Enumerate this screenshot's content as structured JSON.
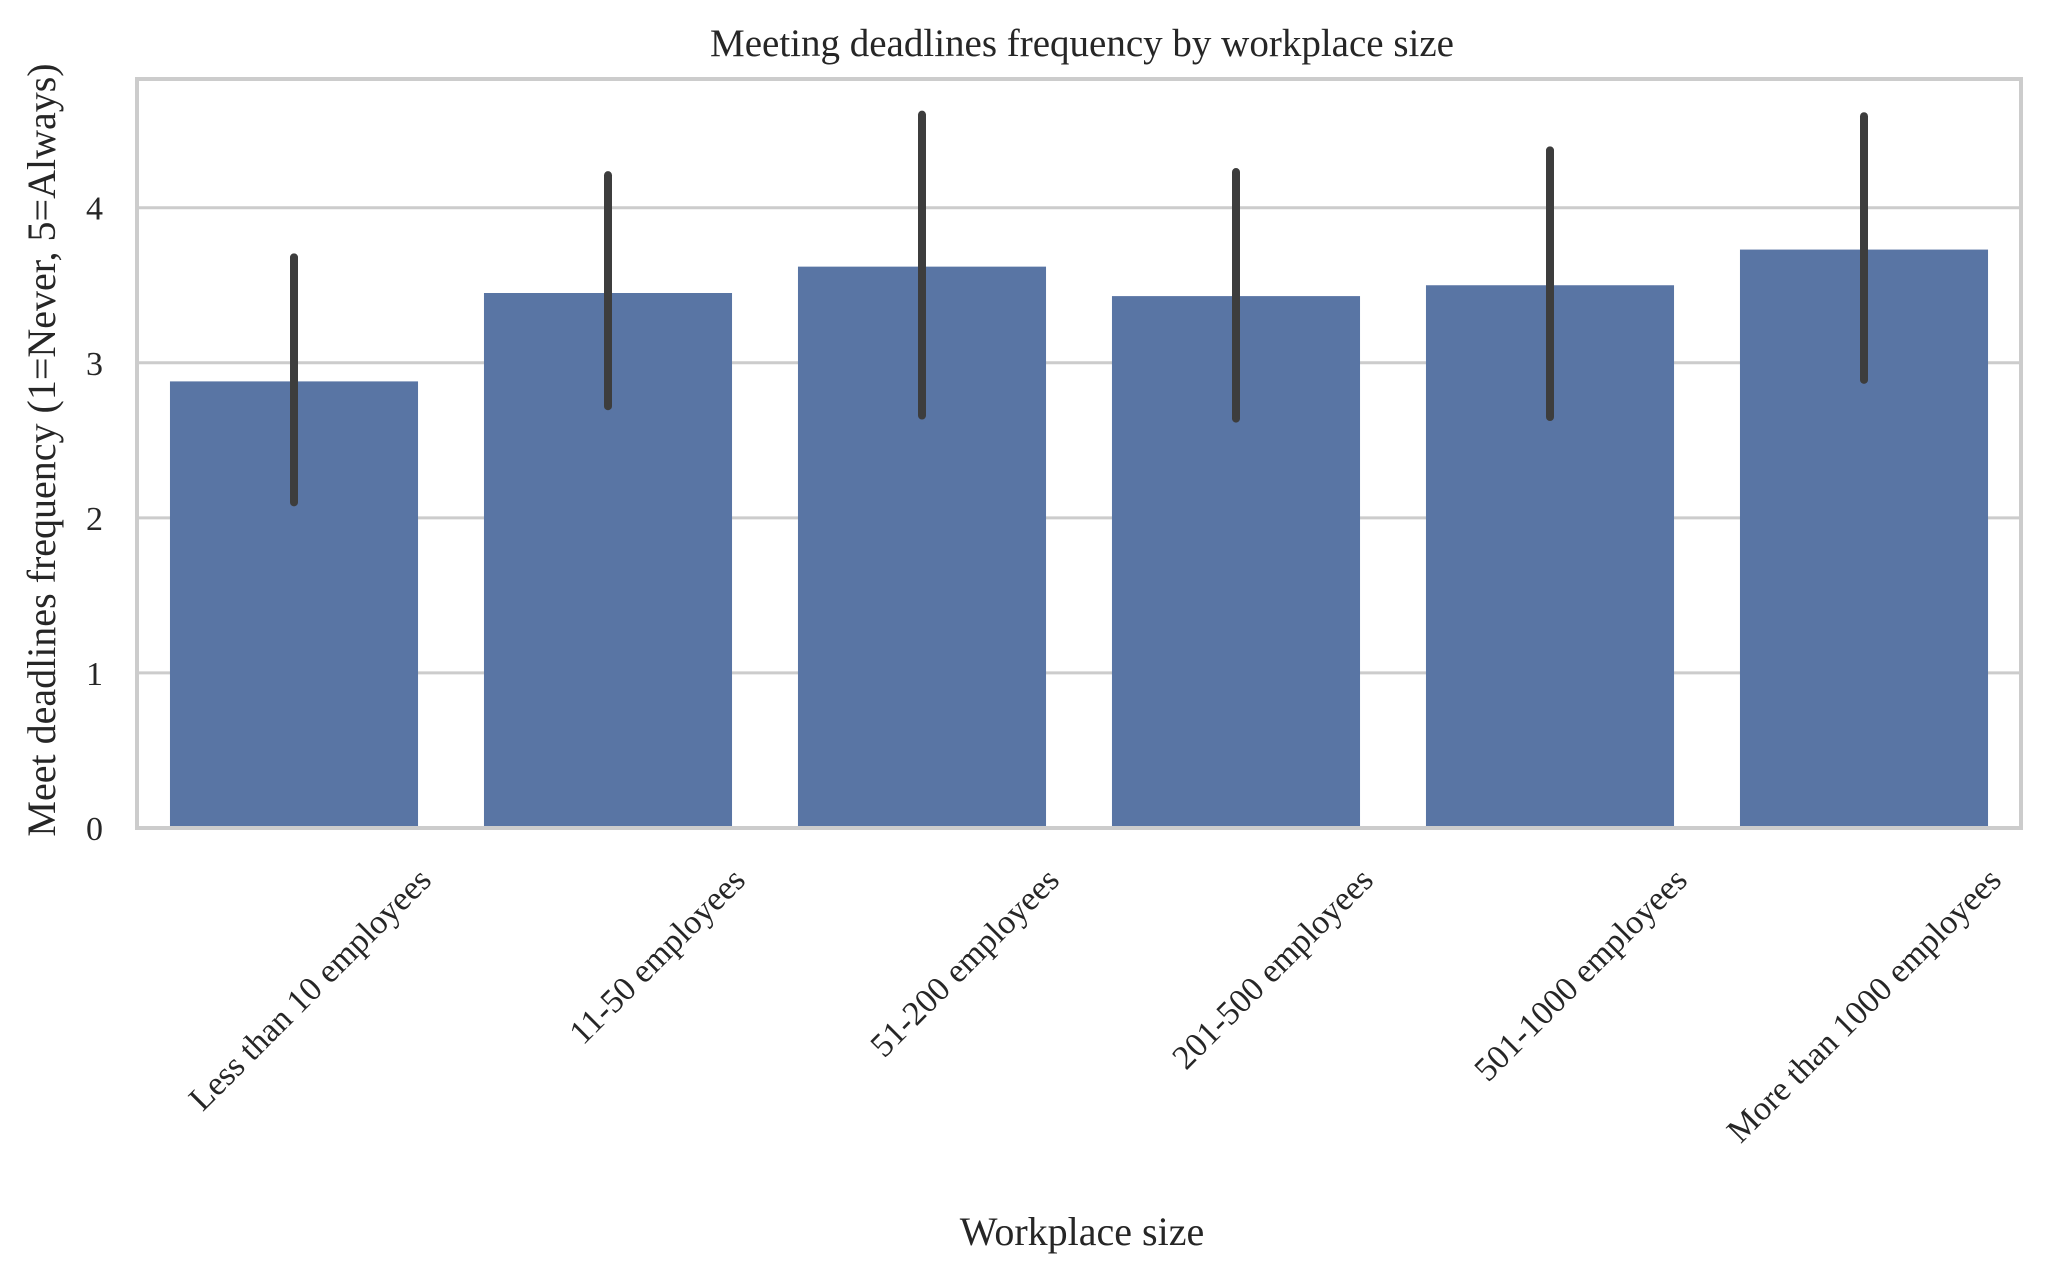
{
  "chart_data": {
    "type": "bar",
    "title": "Meeting deadlines frequency by workplace size",
    "xlabel": "Workplace size",
    "ylabel": "Meet deadlines frequency (1=Never, 5=Always)",
    "categories": [
      "Less than 10 employees",
      "11-50 employees",
      "51-200 employees",
      "201-500 employees",
      "501-1000 employees",
      "More than 1000 employees"
    ],
    "values": [
      2.88,
      3.45,
      3.62,
      3.43,
      3.5,
      3.73
    ],
    "error_low": [
      2.1,
      2.72,
      2.66,
      2.64,
      2.65,
      2.89
    ],
    "error_high": [
      3.68,
      4.21,
      4.6,
      4.23,
      4.37,
      4.59
    ],
    "ylim": [
      0,
      4.83
    ],
    "yticks": [
      0,
      1,
      2,
      3,
      4
    ],
    "grid": true,
    "colors": {
      "bar": "#5975a4",
      "errorbar": "#3d3d3d",
      "grid": "#cccccc",
      "spine": "#cccccc",
      "text": "#262626"
    }
  }
}
